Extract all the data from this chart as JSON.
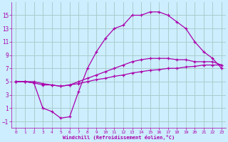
{
  "xlabel": "Windchill (Refroidissement éolien,°C)",
  "bg_color": "#cceeff",
  "grid_color": "#aacccc",
  "line_color": "#aa00aa",
  "xlim": [
    -0.5,
    23.5
  ],
  "ylim": [
    -2,
    17
  ],
  "xticks": [
    0,
    1,
    2,
    3,
    4,
    5,
    6,
    7,
    8,
    9,
    10,
    11,
    12,
    13,
    14,
    15,
    16,
    17,
    18,
    19,
    20,
    21,
    22,
    23
  ],
  "yticks": [
    -1,
    1,
    3,
    5,
    7,
    9,
    11,
    13,
    15
  ],
  "line1_x": [
    0,
    1,
    2,
    3,
    4,
    5,
    6,
    7,
    8,
    9,
    10,
    11,
    12,
    13,
    14,
    15,
    16,
    17,
    18,
    19,
    20,
    21,
    22,
    23
  ],
  "line1_y": [
    5.0,
    5.0,
    5.0,
    4.7,
    4.5,
    4.3,
    4.5,
    4.7,
    5.0,
    5.3,
    5.5,
    5.8,
    6.0,
    6.3,
    6.5,
    6.7,
    6.8,
    7.0,
    7.0,
    7.2,
    7.3,
    7.5,
    7.5,
    7.5
  ],
  "line2_x": [
    0,
    1,
    2,
    3,
    4,
    5,
    6,
    7,
    8,
    9,
    10,
    11,
    12,
    13,
    14,
    15,
    16,
    17,
    18,
    19,
    20,
    21,
    22,
    23
  ],
  "line2_y": [
    5.0,
    5.0,
    4.8,
    4.5,
    4.5,
    4.3,
    4.5,
    5.0,
    5.5,
    6.0,
    6.5,
    7.0,
    7.5,
    8.0,
    8.3,
    8.5,
    8.5,
    8.5,
    8.3,
    8.3,
    8.0,
    8.0,
    8.0,
    7.5
  ],
  "line3_x": [
    0,
    1,
    2,
    3,
    4,
    5,
    6,
    7,
    8,
    9,
    10,
    11,
    12,
    13,
    14,
    15,
    16,
    17,
    18,
    19,
    20,
    21,
    22,
    23
  ],
  "line3_y": [
    5.0,
    5.0,
    4.8,
    1.0,
    0.5,
    -0.5,
    -0.3,
    3.5,
    7.0,
    9.5,
    11.5,
    13.0,
    13.5,
    15.0,
    15.0,
    15.5,
    15.5,
    15.0,
    14.0,
    13.0,
    11.0,
    9.5,
    8.5,
    7.0
  ]
}
